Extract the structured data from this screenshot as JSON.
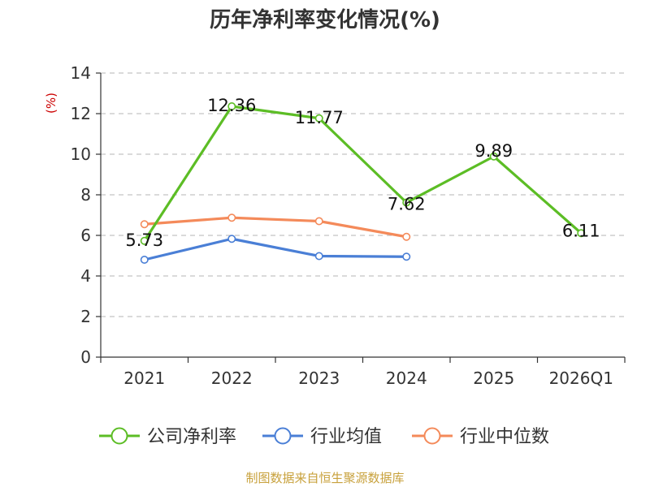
{
  "chart_data": {
    "type": "line",
    "title": "历年净利率变化情况(%)",
    "y_unit": "(%)",
    "categories": [
      "2021",
      "2022",
      "2023",
      "2024",
      "2025",
      "2026Q1"
    ],
    "ylim": [
      0,
      14
    ],
    "yticks": [
      0,
      2,
      4,
      6,
      8,
      10,
      12,
      14
    ],
    "grid": true,
    "legend_position": "bottom",
    "series": [
      {
        "name": "公司净利率",
        "color": "#5cbd25",
        "values": [
          5.73,
          12.36,
          11.77,
          7.62,
          9.89,
          6.11
        ],
        "labels": [
          "5.73",
          "12.36",
          "11.77",
          "7.62",
          "9.89",
          "6.11"
        ]
      },
      {
        "name": "行业均值",
        "color": "#4a7fd6",
        "values": [
          4.8,
          5.83,
          4.98,
          4.95,
          null,
          null
        ]
      },
      {
        "name": "行业中位数",
        "color": "#f48a5a",
        "values": [
          6.55,
          6.87,
          6.7,
          5.93,
          null,
          null
        ]
      }
    ],
    "source": "制图数据来自恒生聚源数据库"
  }
}
